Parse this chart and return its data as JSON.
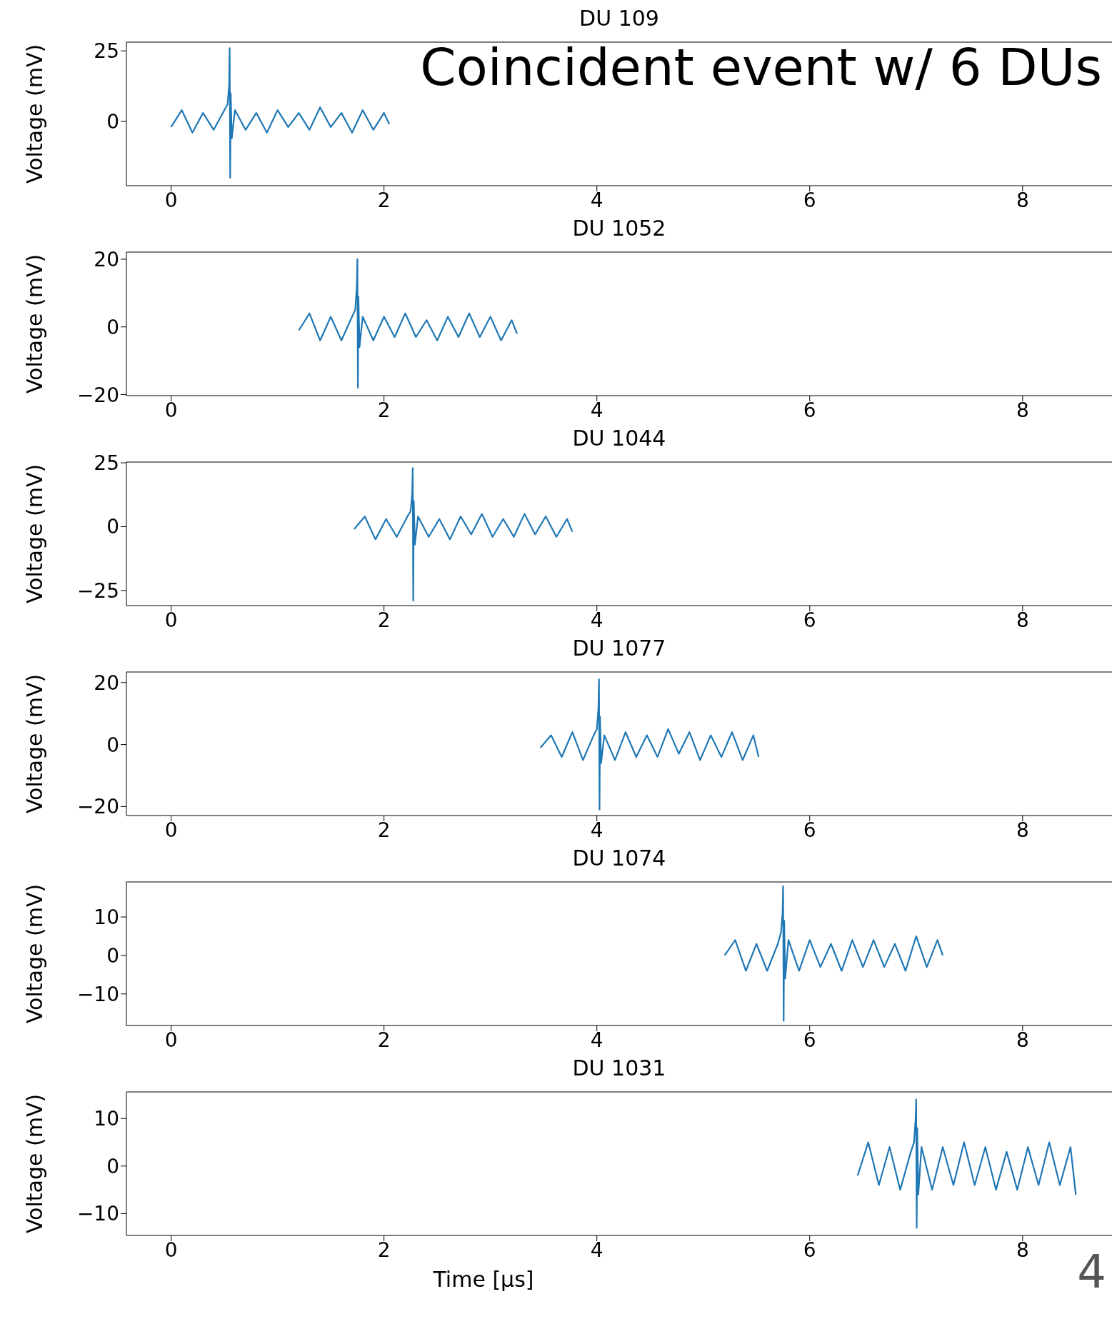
{
  "chart_data": [
    {
      "type": "line",
      "title": "DU 109",
      "ylabel": "Voltage (mV)",
      "annotations": [
        "Coincident event w/ 6 DUs"
      ],
      "xlim": [
        -0.42,
        8.84
      ],
      "xticks": [
        0,
        2,
        4,
        6,
        8
      ],
      "ylim": [
        -22.8,
        28.1
      ],
      "yticks": [
        0,
        25
      ],
      "marker": "none",
      "line_style": "solid",
      "series": [
        {
          "color": "#1f77b4",
          "x": [
            0,
            0.1,
            0.2,
            0.3,
            0.4,
            0.5,
            0.53,
            0.545,
            0.55,
            0.555,
            0.56,
            0.57,
            0.6,
            0.7,
            0.8,
            0.9,
            1.0,
            1.1,
            1.2,
            1.3,
            1.4,
            1.5,
            1.6,
            1.7,
            1.8,
            1.9,
            2.0,
            2.05
          ],
          "values": [
            -2,
            4,
            -4,
            3,
            -3,
            4,
            6,
            13,
            26,
            -20,
            10,
            -6,
            4,
            -3,
            3,
            -4,
            4,
            -2,
            3,
            -3,
            5,
            -2,
            3,
            -4,
            4,
            -3,
            3,
            -1
          ]
        }
      ]
    },
    {
      "type": "line",
      "title": "DU 1052",
      "ylabel": "Voltage (mV)",
      "xlim": [
        -0.42,
        8.84
      ],
      "xticks": [
        0,
        2,
        4,
        6,
        8
      ],
      "ylim": [
        -20.3,
        22.1
      ],
      "yticks": [
        -20,
        0,
        20
      ],
      "marker": "none",
      "line_style": "solid",
      "series": [
        {
          "color": "#1f77b4",
          "x": [
            1.2,
            1.3,
            1.4,
            1.5,
            1.6,
            1.7,
            1.73,
            1.745,
            1.75,
            1.755,
            1.76,
            1.77,
            1.8,
            1.9,
            2.0,
            2.1,
            2.2,
            2.3,
            2.4,
            2.5,
            2.6,
            2.7,
            2.8,
            2.9,
            3.0,
            3.1,
            3.2,
            3.25
          ],
          "values": [
            -1,
            4,
            -4,
            3,
            -4,
            3,
            5,
            12,
            20,
            -18,
            9,
            -6,
            3,
            -4,
            3,
            -3,
            4,
            -3,
            2,
            -4,
            3,
            -3,
            4,
            -3,
            3,
            -4,
            2,
            -2
          ]
        }
      ]
    },
    {
      "type": "line",
      "title": "DU 1044",
      "ylabel": "Voltage (mV)",
      "xlim": [
        -0.42,
        8.84
      ],
      "xticks": [
        0,
        2,
        4,
        6,
        8
      ],
      "ylim": [
        -30.9,
        25.3
      ],
      "yticks": [
        -25,
        0,
        25
      ],
      "marker": "none",
      "line_style": "solid",
      "series": [
        {
          "color": "#1f77b4",
          "x": [
            1.72,
            1.82,
            1.92,
            2.02,
            2.12,
            2.22,
            2.25,
            2.265,
            2.27,
            2.275,
            2.28,
            2.29,
            2.32,
            2.42,
            2.52,
            2.62,
            2.72,
            2.82,
            2.92,
            3.02,
            3.12,
            3.22,
            3.32,
            3.42,
            3.52,
            3.62,
            3.72,
            3.77
          ],
          "values": [
            -1,
            4,
            -5,
            3,
            -4,
            4,
            6,
            13,
            23,
            -29,
            10,
            -7,
            4,
            -4,
            3,
            -5,
            4,
            -3,
            5,
            -4,
            3,
            -4,
            5,
            -3,
            4,
            -4,
            3,
            -2
          ]
        }
      ]
    },
    {
      "type": "line",
      "title": "DU 1077",
      "ylabel": "Voltage (mV)",
      "xlim": [
        -0.42,
        8.84
      ],
      "xticks": [
        0,
        2,
        4,
        6,
        8
      ],
      "ylim": [
        -22.9,
        23.4
      ],
      "yticks": [
        -20,
        0,
        20
      ],
      "marker": "none",
      "line_style": "solid",
      "series": [
        {
          "color": "#1f77b4",
          "x": [
            3.47,
            3.57,
            3.67,
            3.77,
            3.87,
            3.97,
            4.0,
            4.015,
            4.02,
            4.025,
            4.03,
            4.04,
            4.07,
            4.17,
            4.27,
            4.37,
            4.47,
            4.57,
            4.67,
            4.77,
            4.87,
            4.97,
            5.07,
            5.17,
            5.27,
            5.37,
            5.47,
            5.52
          ],
          "values": [
            -1,
            3,
            -4,
            4,
            -5,
            3,
            5,
            12,
            21,
            -21,
            9,
            -6,
            3,
            -5,
            4,
            -4,
            3,
            -4,
            5,
            -3,
            4,
            -5,
            3,
            -4,
            4,
            -5,
            3,
            -4
          ]
        }
      ]
    },
    {
      "type": "line",
      "title": "DU 1074",
      "ylabel": "Voltage (mV)",
      "xlim": [
        -0.42,
        8.84
      ],
      "xticks": [
        0,
        2,
        4,
        6,
        8
      ],
      "ylim": [
        -18.2,
        19.1
      ],
      "yticks": [
        -10,
        0,
        10
      ],
      "marker": "none",
      "line_style": "solid",
      "series": [
        {
          "color": "#1f77b4",
          "x": [
            5.2,
            5.3,
            5.4,
            5.5,
            5.6,
            5.7,
            5.73,
            5.745,
            5.75,
            5.755,
            5.76,
            5.77,
            5.8,
            5.9,
            6.0,
            6.1,
            6.2,
            6.3,
            6.4,
            6.5,
            6.6,
            6.7,
            6.8,
            6.9,
            7.0,
            7.1,
            7.2,
            7.25
          ],
          "values": [
            0,
            4,
            -4,
            3,
            -4,
            3,
            6,
            11,
            18,
            -17,
            9,
            -6,
            4,
            -4,
            4,
            -3,
            3,
            -4,
            4,
            -3,
            4,
            -3,
            3,
            -4,
            5,
            -3,
            4,
            0
          ]
        }
      ]
    },
    {
      "type": "line",
      "title": "DU 1031",
      "ylabel": "Voltage (mV)",
      "xlabel": "Time [μs]",
      "annotations": [
        "4"
      ],
      "xlim": [
        -0.42,
        8.84
      ],
      "xticks": [
        0,
        2,
        4,
        6,
        8
      ],
      "ylim": [
        -14.6,
        15.6
      ],
      "yticks": [
        -10,
        0,
        10
      ],
      "marker": "none",
      "line_style": "solid",
      "series": [
        {
          "color": "#1f77b4",
          "x": [
            6.45,
            6.55,
            6.65,
            6.75,
            6.85,
            6.95,
            6.98,
            6.995,
            7.0,
            7.005,
            7.01,
            7.02,
            7.05,
            7.15,
            7.25,
            7.35,
            7.45,
            7.55,
            7.65,
            7.75,
            7.85,
            7.95,
            8.05,
            8.15,
            8.25,
            8.35,
            8.45,
            8.5
          ],
          "values": [
            -2,
            5,
            -4,
            4,
            -5,
            3,
            5,
            10,
            14,
            -13,
            8,
            -6,
            4,
            -5,
            4,
            -4,
            5,
            -4,
            4,
            -5,
            3,
            -5,
            4,
            -4,
            5,
            -4,
            4,
            -6
          ]
        }
      ]
    }
  ]
}
